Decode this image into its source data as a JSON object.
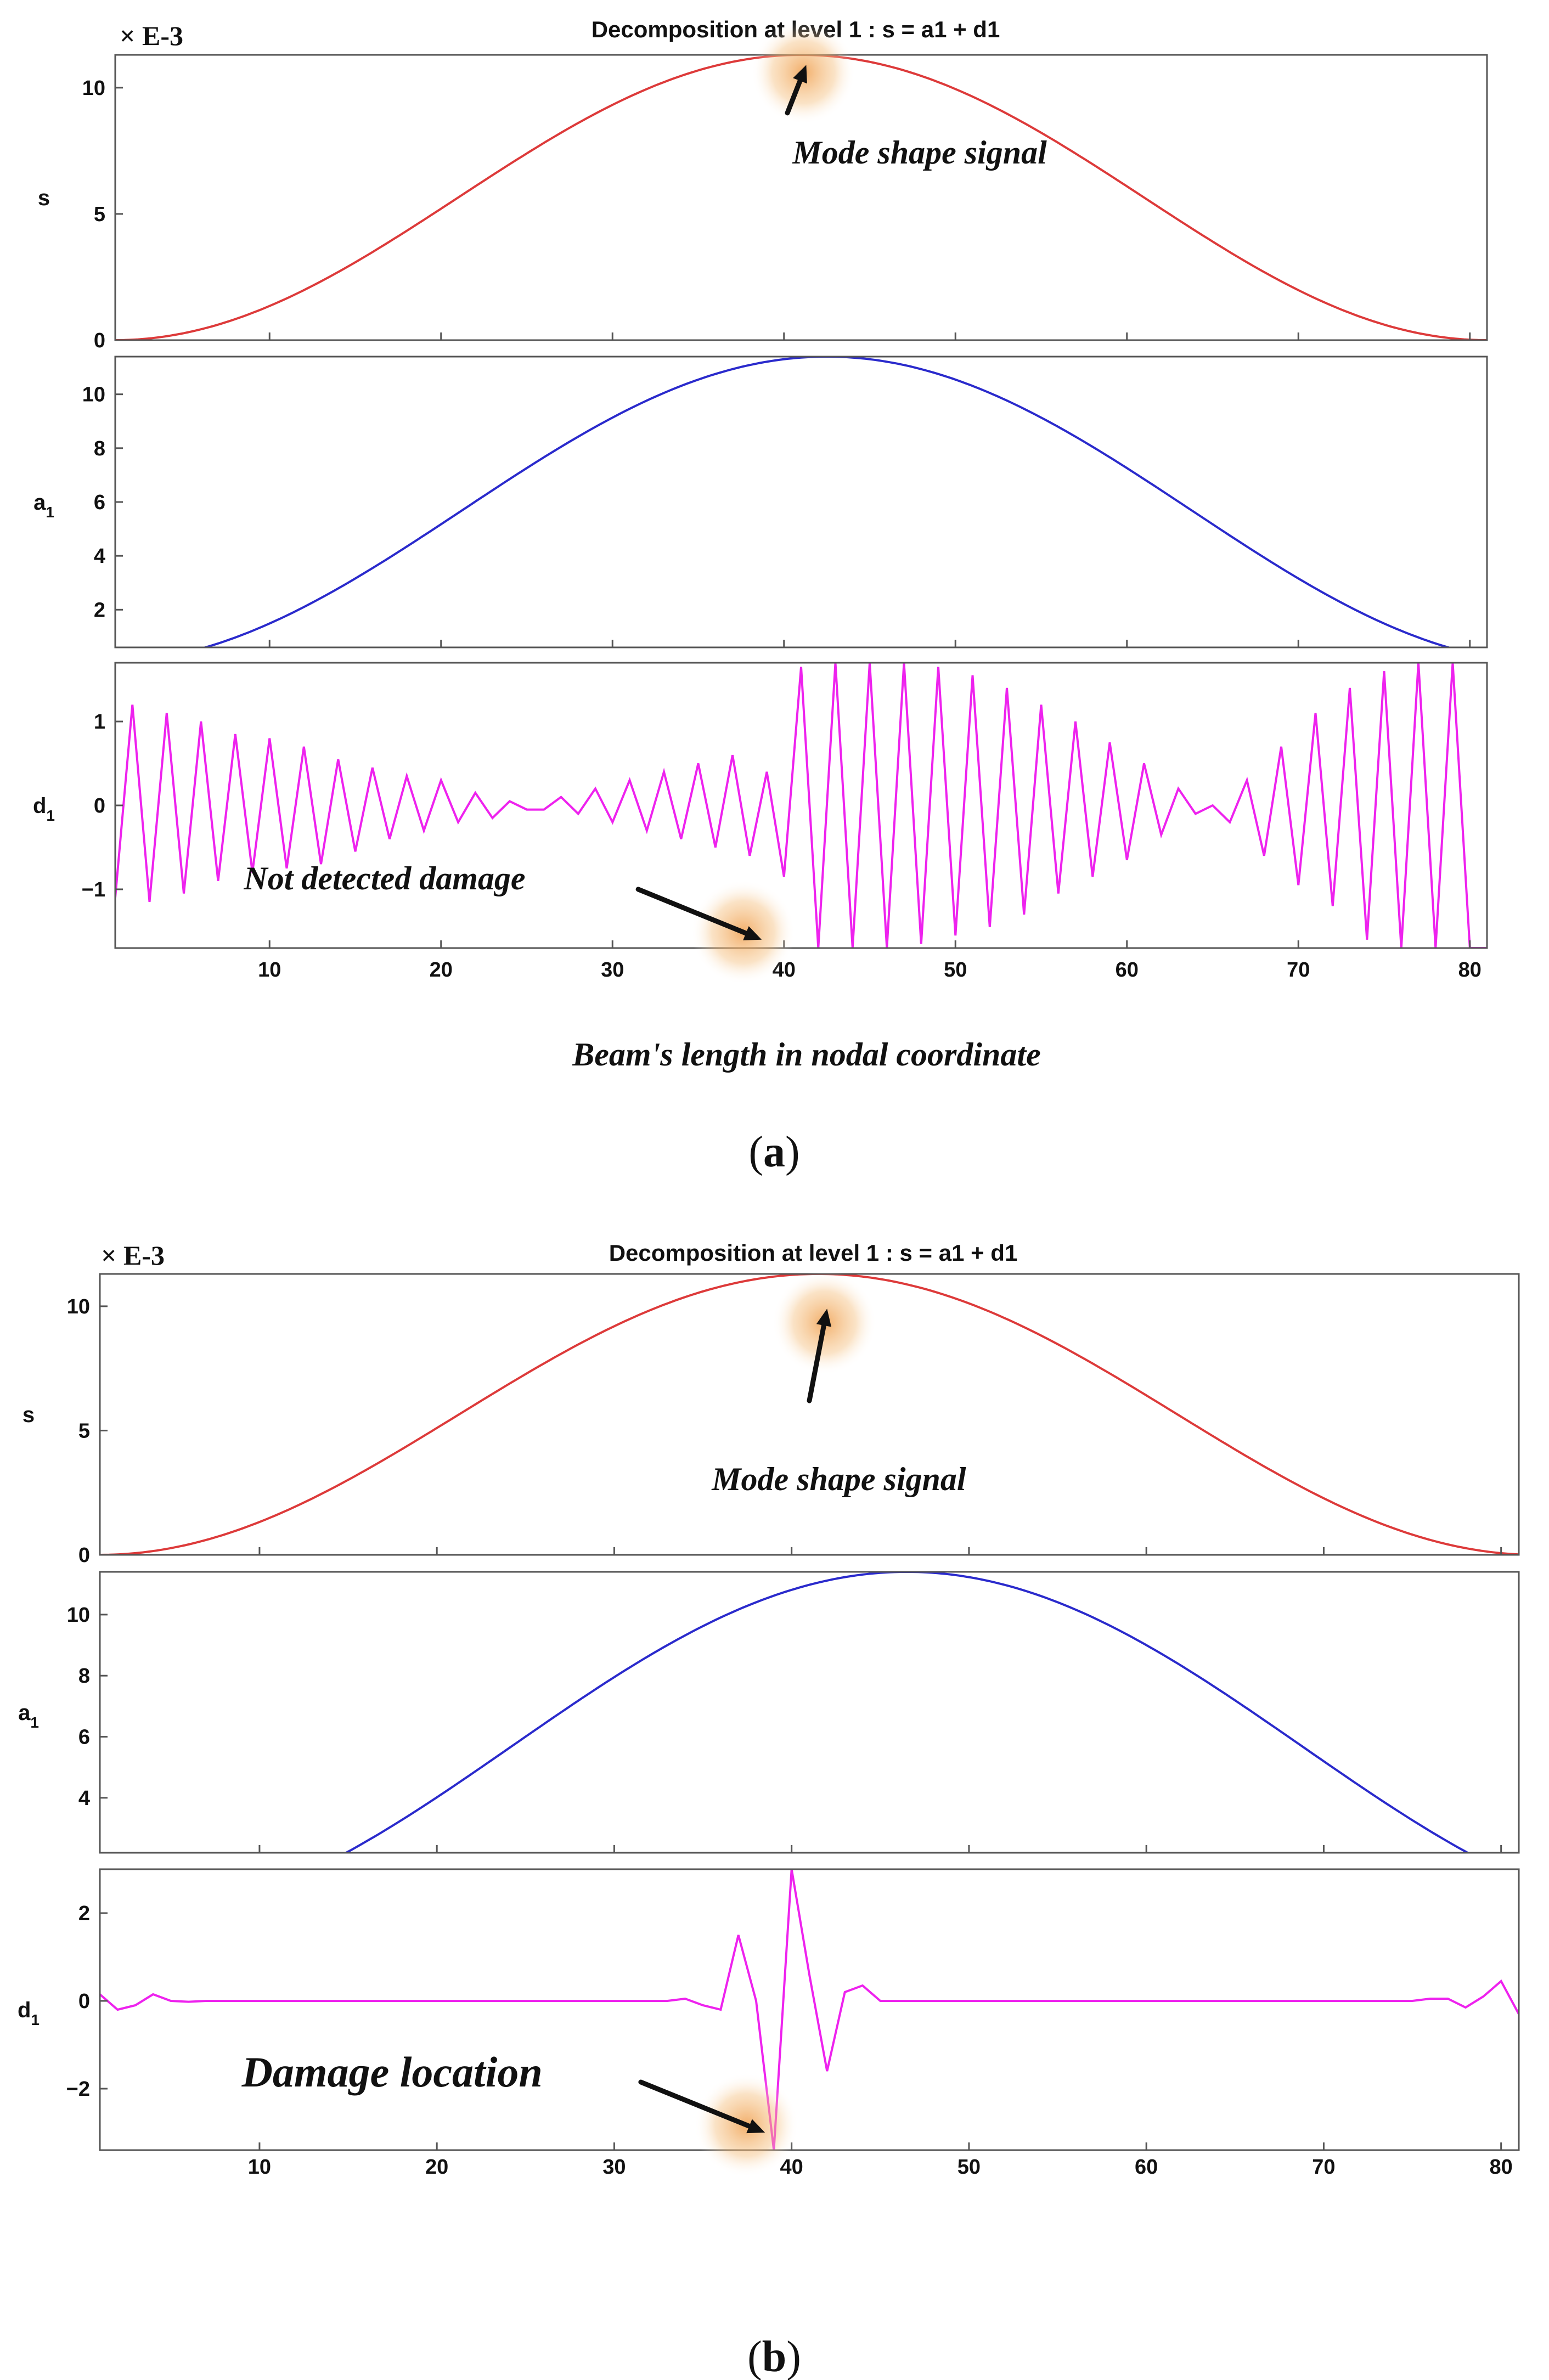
{
  "chart_data": [
    {
      "id": "a",
      "type": "line",
      "title": "Decomposition at level 1 : s = a1 + d1",
      "multiplier": "× E-3",
      "xlabel": "Beam's length in nodal coordinate",
      "caption": {
        "open": "(",
        "letter": "a",
        "close": ")"
      },
      "xlim": [
        1,
        81
      ],
      "xticks": [
        10,
        20,
        30,
        40,
        50,
        60,
        70,
        80
      ],
      "panels": [
        {
          "name": "s",
          "ylabel": "s",
          "ylabel_sub": "",
          "color": "#dd3a3a",
          "ylim": [
            0,
            11.3
          ],
          "yticks": [
            0,
            5,
            10
          ],
          "series": {
            "type": "sine",
            "amplitude": 11.3,
            "x0": 1,
            "x1": 81
          }
        },
        {
          "name": "a1",
          "ylabel": "a",
          "ylabel_sub": "1",
          "color": "#2a2acc",
          "ylim": [
            0.6,
            11.4
          ],
          "yticks": [
            2,
            4,
            6,
            8,
            10
          ],
          "series": {
            "type": "sine",
            "amplitude": 11.4,
            "x0": 0,
            "x1": 85
          }
        },
        {
          "name": "d1",
          "ylabel": "d",
          "ylabel_sub": "1",
          "color": "#ee22ee",
          "ylim": [
            -1.7,
            1.7
          ],
          "yticks": [
            -1,
            0,
            1
          ],
          "ytick_labels": [
            "−1",
            "0",
            "1"
          ],
          "series": {
            "type": "points",
            "x": [
              1,
              2,
              3,
              4,
              5,
              6,
              7,
              8,
              9,
              10,
              11,
              12,
              13,
              14,
              15,
              16,
              17,
              18,
              19,
              20,
              21,
              22,
              23,
              24,
              25,
              26,
              27,
              28,
              29,
              30,
              31,
              32,
              33,
              34,
              35,
              36,
              37,
              38,
              39,
              40,
              41,
              42,
              43,
              44,
              45,
              46,
              47,
              48,
              49,
              50,
              51,
              52,
              53,
              54,
              55,
              56,
              57,
              58,
              59,
              60,
              61,
              62,
              63,
              64,
              65,
              66,
              67,
              68,
              69,
              70,
              71,
              72,
              73,
              74,
              75,
              76,
              77,
              78,
              79,
              80,
              81
            ],
            "y": [
              -1.1,
              1.2,
              -1.15,
              1.1,
              -1.05,
              1.0,
              -0.9,
              0.85,
              -0.8,
              0.8,
              -0.75,
              0.7,
              -0.7,
              0.55,
              -0.55,
              0.45,
              -0.4,
              0.35,
              -0.3,
              0.3,
              -0.2,
              0.15,
              -0.15,
              0.05,
              -0.05,
              -0.05,
              0.1,
              -0.1,
              0.2,
              -0.2,
              0.3,
              -0.3,
              0.4,
              -0.4,
              0.5,
              -0.5,
              0.6,
              -0.6,
              0.4,
              -0.85,
              1.65,
              -1.7,
              1.7,
              -1.7,
              1.7,
              -1.7,
              1.7,
              -1.65,
              1.65,
              -1.55,
              1.55,
              -1.45,
              1.4,
              -1.3,
              1.2,
              -1.05,
              1.0,
              -0.85,
              0.75,
              -0.65,
              0.5,
              -0.35,
              0.2,
              -0.1,
              0.0,
              -0.2,
              0.3,
              -0.6,
              0.7,
              -0.95,
              1.1,
              -1.2,
              1.4,
              -1.6,
              1.6,
              -1.7,
              1.7,
              -1.7,
              1.7,
              -1.7,
              -1.7
            ]
          }
        }
      ],
      "annotations": [
        {
          "text": "Mode shape signal",
          "panel": 0,
          "x": 40.5,
          "y": 7.0,
          "arrow_from": [
            40.2,
            9.0
          ],
          "arrow_to": [
            41.3,
            10.9
          ]
        },
        {
          "text": "Not detected damage",
          "panel": 2,
          "x": 8.5,
          "y": -1.0,
          "arrow_from": [
            31.5,
            -1.0
          ],
          "arrow_to": [
            38.7,
            -1.6
          ]
        }
      ]
    },
    {
      "id": "b",
      "type": "line",
      "title": "Decomposition at level 1 : s = a1 + d1",
      "multiplier": "× E-3",
      "caption": {
        "open": "(",
        "letter": "b",
        "close": ")"
      },
      "xlim": [
        1,
        81
      ],
      "xticks": [
        10,
        20,
        30,
        40,
        50,
        60,
        70,
        80
      ],
      "panels": [
        {
          "name": "s",
          "ylabel": "s",
          "ylabel_sub": "",
          "color": "#dd3a3a",
          "ylim": [
            0,
            11.3
          ],
          "yticks": [
            0,
            5,
            10
          ],
          "series": {
            "type": "sine",
            "amplitude": 11.3,
            "x0": 1,
            "x1": 82
          }
        },
        {
          "name": "a1",
          "ylabel": "a",
          "ylabel_sub": "1",
          "color": "#2a2acc",
          "ylim": [
            2.2,
            11.4
          ],
          "yticks": [
            4,
            6,
            8,
            10
          ],
          "series": {
            "type": "sine",
            "amplitude": 11.4,
            "x0": 2,
            "x1": 91
          }
        },
        {
          "name": "d1",
          "ylabel": "d",
          "ylabel_sub": "1",
          "color": "#ee22ee",
          "ylim": [
            -3.4,
            3.0
          ],
          "yticks": [
            -2,
            0,
            2
          ],
          "ytick_labels": [
            "−2",
            "0",
            "2"
          ],
          "series": {
            "type": "points",
            "x": [
              1,
              2,
              3,
              4,
              5,
              6,
              7,
              8,
              9,
              10,
              11,
              12,
              13,
              14,
              15,
              16,
              17,
              18,
              19,
              20,
              21,
              22,
              23,
              24,
              25,
              26,
              27,
              28,
              29,
              30,
              31,
              32,
              33,
              34,
              35,
              36,
              37,
              38,
              39,
              40,
              41,
              42,
              43,
              44,
              45,
              46,
              47,
              48,
              49,
              50,
              51,
              52,
              53,
              54,
              55,
              56,
              57,
              58,
              59,
              60,
              61,
              62,
              63,
              64,
              65,
              66,
              67,
              68,
              69,
              70,
              71,
              72,
              73,
              74,
              75,
              76,
              77,
              78,
              79,
              80,
              81
            ],
            "y": [
              0.15,
              -0.2,
              -0.1,
              0.15,
              0.0,
              -0.02,
              0.0,
              0.0,
              0.0,
              0.0,
              0.0,
              0.0,
              0.0,
              0.0,
              0.0,
              0.0,
              0.0,
              0.0,
              0.0,
              0.0,
              0.0,
              0.0,
              0.0,
              0.0,
              0.0,
              0.0,
              0.0,
              0.0,
              0.0,
              0.0,
              0.0,
              0.0,
              0.0,
              0.05,
              -0.1,
              -0.2,
              1.5,
              0.0,
              -3.4,
              3.0,
              0.6,
              -1.6,
              0.2,
              0.35,
              0.0,
              0.0,
              0.0,
              0.0,
              0.0,
              0.0,
              0.0,
              0.0,
              0.0,
              0.0,
              0.0,
              0.0,
              0.0,
              0.0,
              0.0,
              0.0,
              0.0,
              0.0,
              0.0,
              0.0,
              0.0,
              0.0,
              0.0,
              0.0,
              0.0,
              0.0,
              0.0,
              0.0,
              0.0,
              0.0,
              0.0,
              0.05,
              0.05,
              -0.15,
              0.1,
              0.45,
              -0.3
            ]
          }
        }
      ],
      "annotations": [
        {
          "text": "Mode shape signal",
          "panel": 0,
          "x": 35.5,
          "y": 2.6,
          "arrow_from": [
            41.0,
            6.2
          ],
          "arrow_to": [
            42.0,
            9.9
          ]
        },
        {
          "text": "Damage location",
          "panel": 2,
          "x": 9.0,
          "y": -1.95,
          "arrow_from": [
            31.5,
            -1.85
          ],
          "arrow_to": [
            38.5,
            -3.0
          ]
        }
      ]
    }
  ]
}
